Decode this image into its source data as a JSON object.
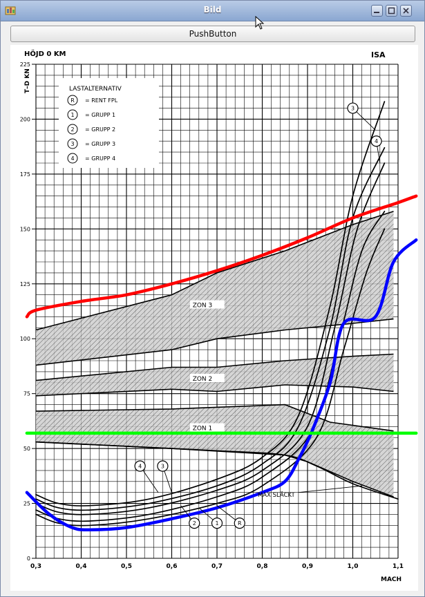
{
  "window": {
    "title": "Bild"
  },
  "toolbar": {
    "push_button_label": "PushButton"
  },
  "chart_data": {
    "type": "line",
    "title": "HÖJD 0 KM",
    "corner_label": "ISA",
    "xlabel": "MACH",
    "ylabel": "T–D KN",
    "xlim": [
      0.3,
      1.1
    ],
    "ylim": [
      0,
      225
    ],
    "x_ticks": [
      "0,3",
      "0,4",
      "0,5",
      "0,6",
      "0,7",
      "0,8",
      "0,9",
      "1,0",
      "1,1"
    ],
    "y_ticks": [
      "0",
      "25",
      "50",
      "75",
      "100",
      "125",
      "150",
      "175",
      "200",
      "225"
    ],
    "legend": {
      "title": "LASTALTERNATIV",
      "entries": [
        {
          "marker": "R",
          "text": "= RENT FPL"
        },
        {
          "marker": "1",
          "text": "= GRUPP 1"
        },
        {
          "marker": "2",
          "text": "= GRUPP 2"
        },
        {
          "marker": "3",
          "text": "= GRUPP 3"
        },
        {
          "marker": "4",
          "text": "= GRUPP 4"
        }
      ]
    },
    "zones": [
      {
        "label": "ZON 3",
        "lower": [
          [
            0.3,
            88
          ],
          [
            0.6,
            95
          ],
          [
            0.7,
            100
          ],
          [
            0.85,
            104
          ],
          [
            1.0,
            107
          ],
          [
            1.09,
            109
          ]
        ],
        "upper": [
          [
            0.3,
            104
          ],
          [
            0.6,
            120
          ],
          [
            0.7,
            130
          ],
          [
            0.85,
            140
          ],
          [
            1.0,
            152
          ],
          [
            1.09,
            158
          ]
        ]
      },
      {
        "label": "ZON 2",
        "lower": [
          [
            0.3,
            74
          ],
          [
            0.6,
            77
          ],
          [
            0.7,
            76
          ],
          [
            0.85,
            79
          ],
          [
            1.0,
            78
          ],
          [
            1.09,
            76
          ]
        ],
        "upper": [
          [
            0.3,
            81
          ],
          [
            0.6,
            87
          ],
          [
            0.7,
            87
          ],
          [
            0.85,
            90
          ],
          [
            1.0,
            92
          ],
          [
            1.09,
            93
          ]
        ]
      },
      {
        "label": "ZON 1",
        "lower": [
          [
            0.3,
            53
          ],
          [
            0.6,
            50
          ],
          [
            0.85,
            47
          ],
          [
            0.9,
            44
          ],
          [
            1.0,
            35
          ],
          [
            1.09,
            28
          ]
        ],
        "upper": [
          [
            0.3,
            67
          ],
          [
            0.6,
            68
          ],
          [
            0.85,
            70
          ],
          [
            0.95,
            62
          ],
          [
            1.09,
            58
          ]
        ]
      }
    ],
    "series": [
      {
        "name": "3",
        "color": "#000000",
        "points": [
          [
            0.3,
            29
          ],
          [
            0.35,
            25
          ],
          [
            0.42,
            24
          ],
          [
            0.55,
            27
          ],
          [
            0.7,
            36
          ],
          [
            0.8,
            46
          ],
          [
            0.88,
            65
          ],
          [
            0.95,
            115
          ],
          [
            1.0,
            165
          ],
          [
            1.07,
            208
          ]
        ]
      },
      {
        "name": "4",
        "color": "#000000",
        "points": [
          [
            0.3,
            27
          ],
          [
            0.35,
            23
          ],
          [
            0.42,
            22
          ],
          [
            0.55,
            25
          ],
          [
            0.7,
            33
          ],
          [
            0.8,
            43
          ],
          [
            0.88,
            60
          ],
          [
            0.95,
            105
          ],
          [
            1.0,
            155
          ],
          [
            1.07,
            187
          ]
        ]
      },
      {
        "name": "2",
        "color": "#000000",
        "points": [
          [
            0.3,
            25
          ],
          [
            0.35,
            21
          ],
          [
            0.42,
            20
          ],
          [
            0.55,
            23
          ],
          [
            0.7,
            31
          ],
          [
            0.8,
            40
          ],
          [
            0.9,
            60
          ],
          [
            0.96,
            105
          ],
          [
            1.01,
            150
          ],
          [
            1.07,
            180
          ]
        ]
      },
      {
        "name": "1",
        "color": "#000000",
        "points": [
          [
            0.3,
            22
          ],
          [
            0.35,
            18
          ],
          [
            0.42,
            17
          ],
          [
            0.55,
            20
          ],
          [
            0.7,
            28
          ],
          [
            0.8,
            37
          ],
          [
            0.91,
            58
          ],
          [
            0.97,
            100
          ],
          [
            1.02,
            140
          ],
          [
            1.07,
            158
          ]
        ]
      },
      {
        "name": "R",
        "color": "#000000",
        "points": [
          [
            0.3,
            20
          ],
          [
            0.35,
            16
          ],
          [
            0.42,
            15
          ],
          [
            0.55,
            18
          ],
          [
            0.7,
            25
          ],
          [
            0.8,
            33
          ],
          [
            0.92,
            55
          ],
          [
            0.98,
            95
          ],
          [
            1.03,
            130
          ],
          [
            1.07,
            150
          ]
        ]
      },
      {
        "name": "MAX SLÄCKT",
        "color": "#000000",
        "points": [
          [
            0.3,
            53
          ],
          [
            0.5,
            51
          ],
          [
            0.7,
            49
          ],
          [
            0.85,
            47
          ],
          [
            0.92,
            42
          ],
          [
            1.0,
            34
          ],
          [
            1.1,
            27
          ]
        ]
      },
      {
        "name": "",
        "color": "#ff0000",
        "points": [
          [
            0.28,
            110
          ],
          [
            0.3,
            113
          ],
          [
            0.4,
            117
          ],
          [
            0.5,
            120
          ],
          [
            0.6,
            125
          ],
          [
            0.7,
            131
          ],
          [
            0.8,
            138
          ],
          [
            0.9,
            146
          ],
          [
            1.0,
            155
          ],
          [
            1.1,
            162
          ],
          [
            1.14,
            165
          ]
        ]
      },
      {
        "name": "",
        "color": "#0000ff",
        "points": [
          [
            0.28,
            30
          ],
          [
            0.33,
            20
          ],
          [
            0.38,
            14
          ],
          [
            0.42,
            13
          ],
          [
            0.5,
            14
          ],
          [
            0.6,
            18
          ],
          [
            0.7,
            23
          ],
          [
            0.8,
            30
          ],
          [
            0.85,
            35
          ],
          [
            0.88,
            45
          ],
          [
            0.91,
            58
          ],
          [
            0.95,
            80
          ],
          [
            0.98,
            107
          ],
          [
            1.05,
            110
          ],
          [
            1.09,
            135
          ],
          [
            1.14,
            145
          ]
        ]
      },
      {
        "name": "",
        "color": "#00ff00",
        "points": [
          [
            0.28,
            57
          ],
          [
            1.14,
            57
          ]
        ]
      }
    ]
  }
}
